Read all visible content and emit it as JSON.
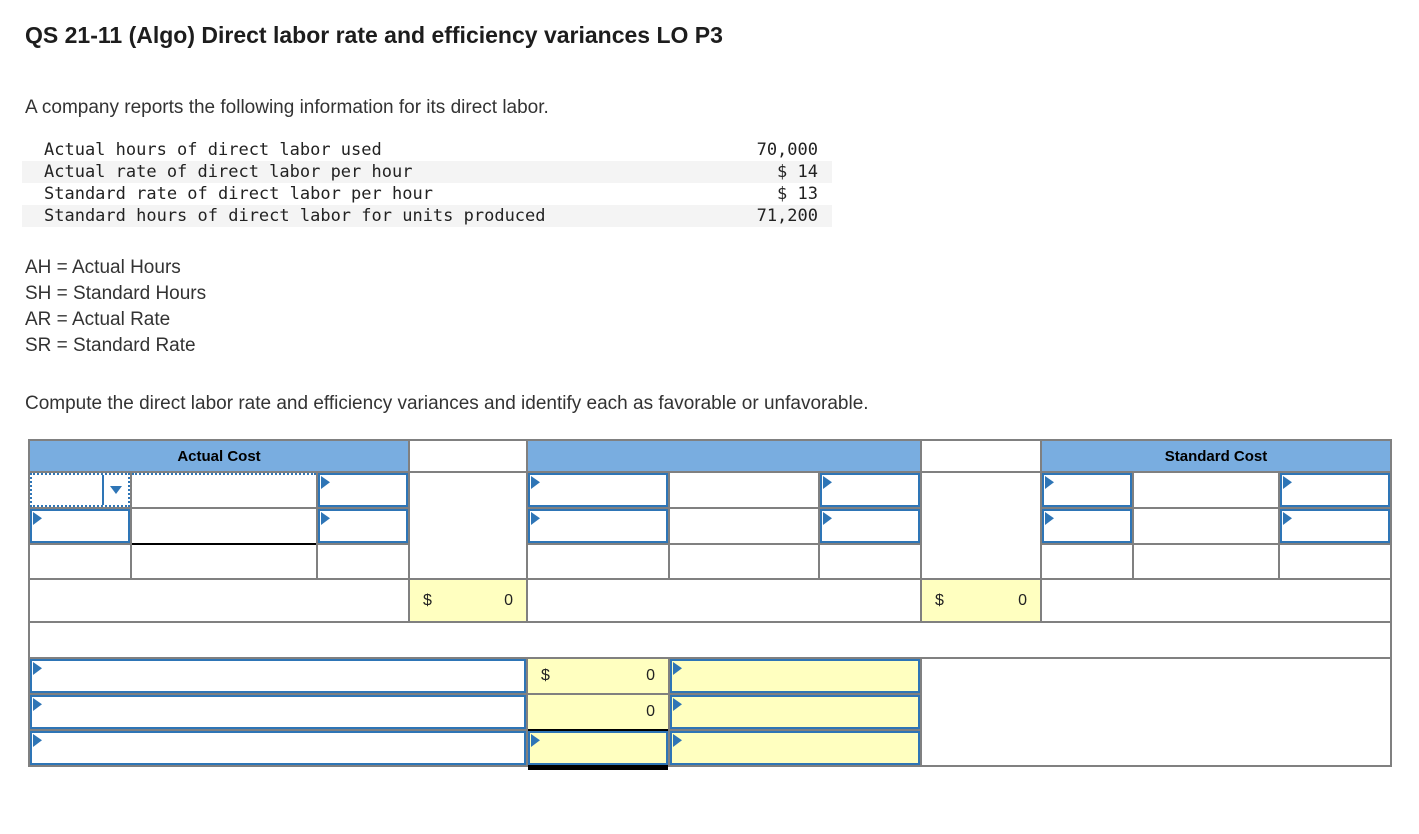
{
  "page": {
    "title": "QS 21-11 (Algo) Direct labor rate and efficiency variances LO P3",
    "intro": "A company reports the following information for its direct labor.",
    "instruction": "Compute the direct labor rate and efficiency variances and identify each as favorable or unfavorable."
  },
  "info_table": {
    "rows": [
      {
        "label": "Actual hours of direct labor used",
        "value": "70,000"
      },
      {
        "label": "Actual rate of direct labor per hour",
        "value": "$ 14"
      },
      {
        "label": "Standard rate of direct labor per hour",
        "value": "$ 13"
      },
      {
        "label": "Standard hours of direct labor for units produced",
        "value": "71,200"
      }
    ]
  },
  "abbreviations": [
    "AH = Actual Hours",
    "SH = Standard Hours",
    "AR = Actual Rate",
    "SR = Standard Rate"
  ],
  "worksheet": {
    "headers": {
      "actual": "Actual Cost",
      "middle": "",
      "standard": "Standard Cost"
    },
    "interval_totals": {
      "left": {
        "currency": "$",
        "value": "0"
      },
      "right": {
        "currency": "$",
        "value": "0"
      }
    },
    "bottom_rows": [
      {
        "amount_currency": "$",
        "amount_value": "0"
      },
      {
        "amount_value": "0"
      },
      {}
    ],
    "colors": {
      "header_blue": "#79ade0",
      "input_border_blue": "#2e75b6",
      "highlight_yellow": "#ffffc0",
      "grid_gray": "#808080",
      "shaded_row": "#f4f4f4"
    }
  }
}
